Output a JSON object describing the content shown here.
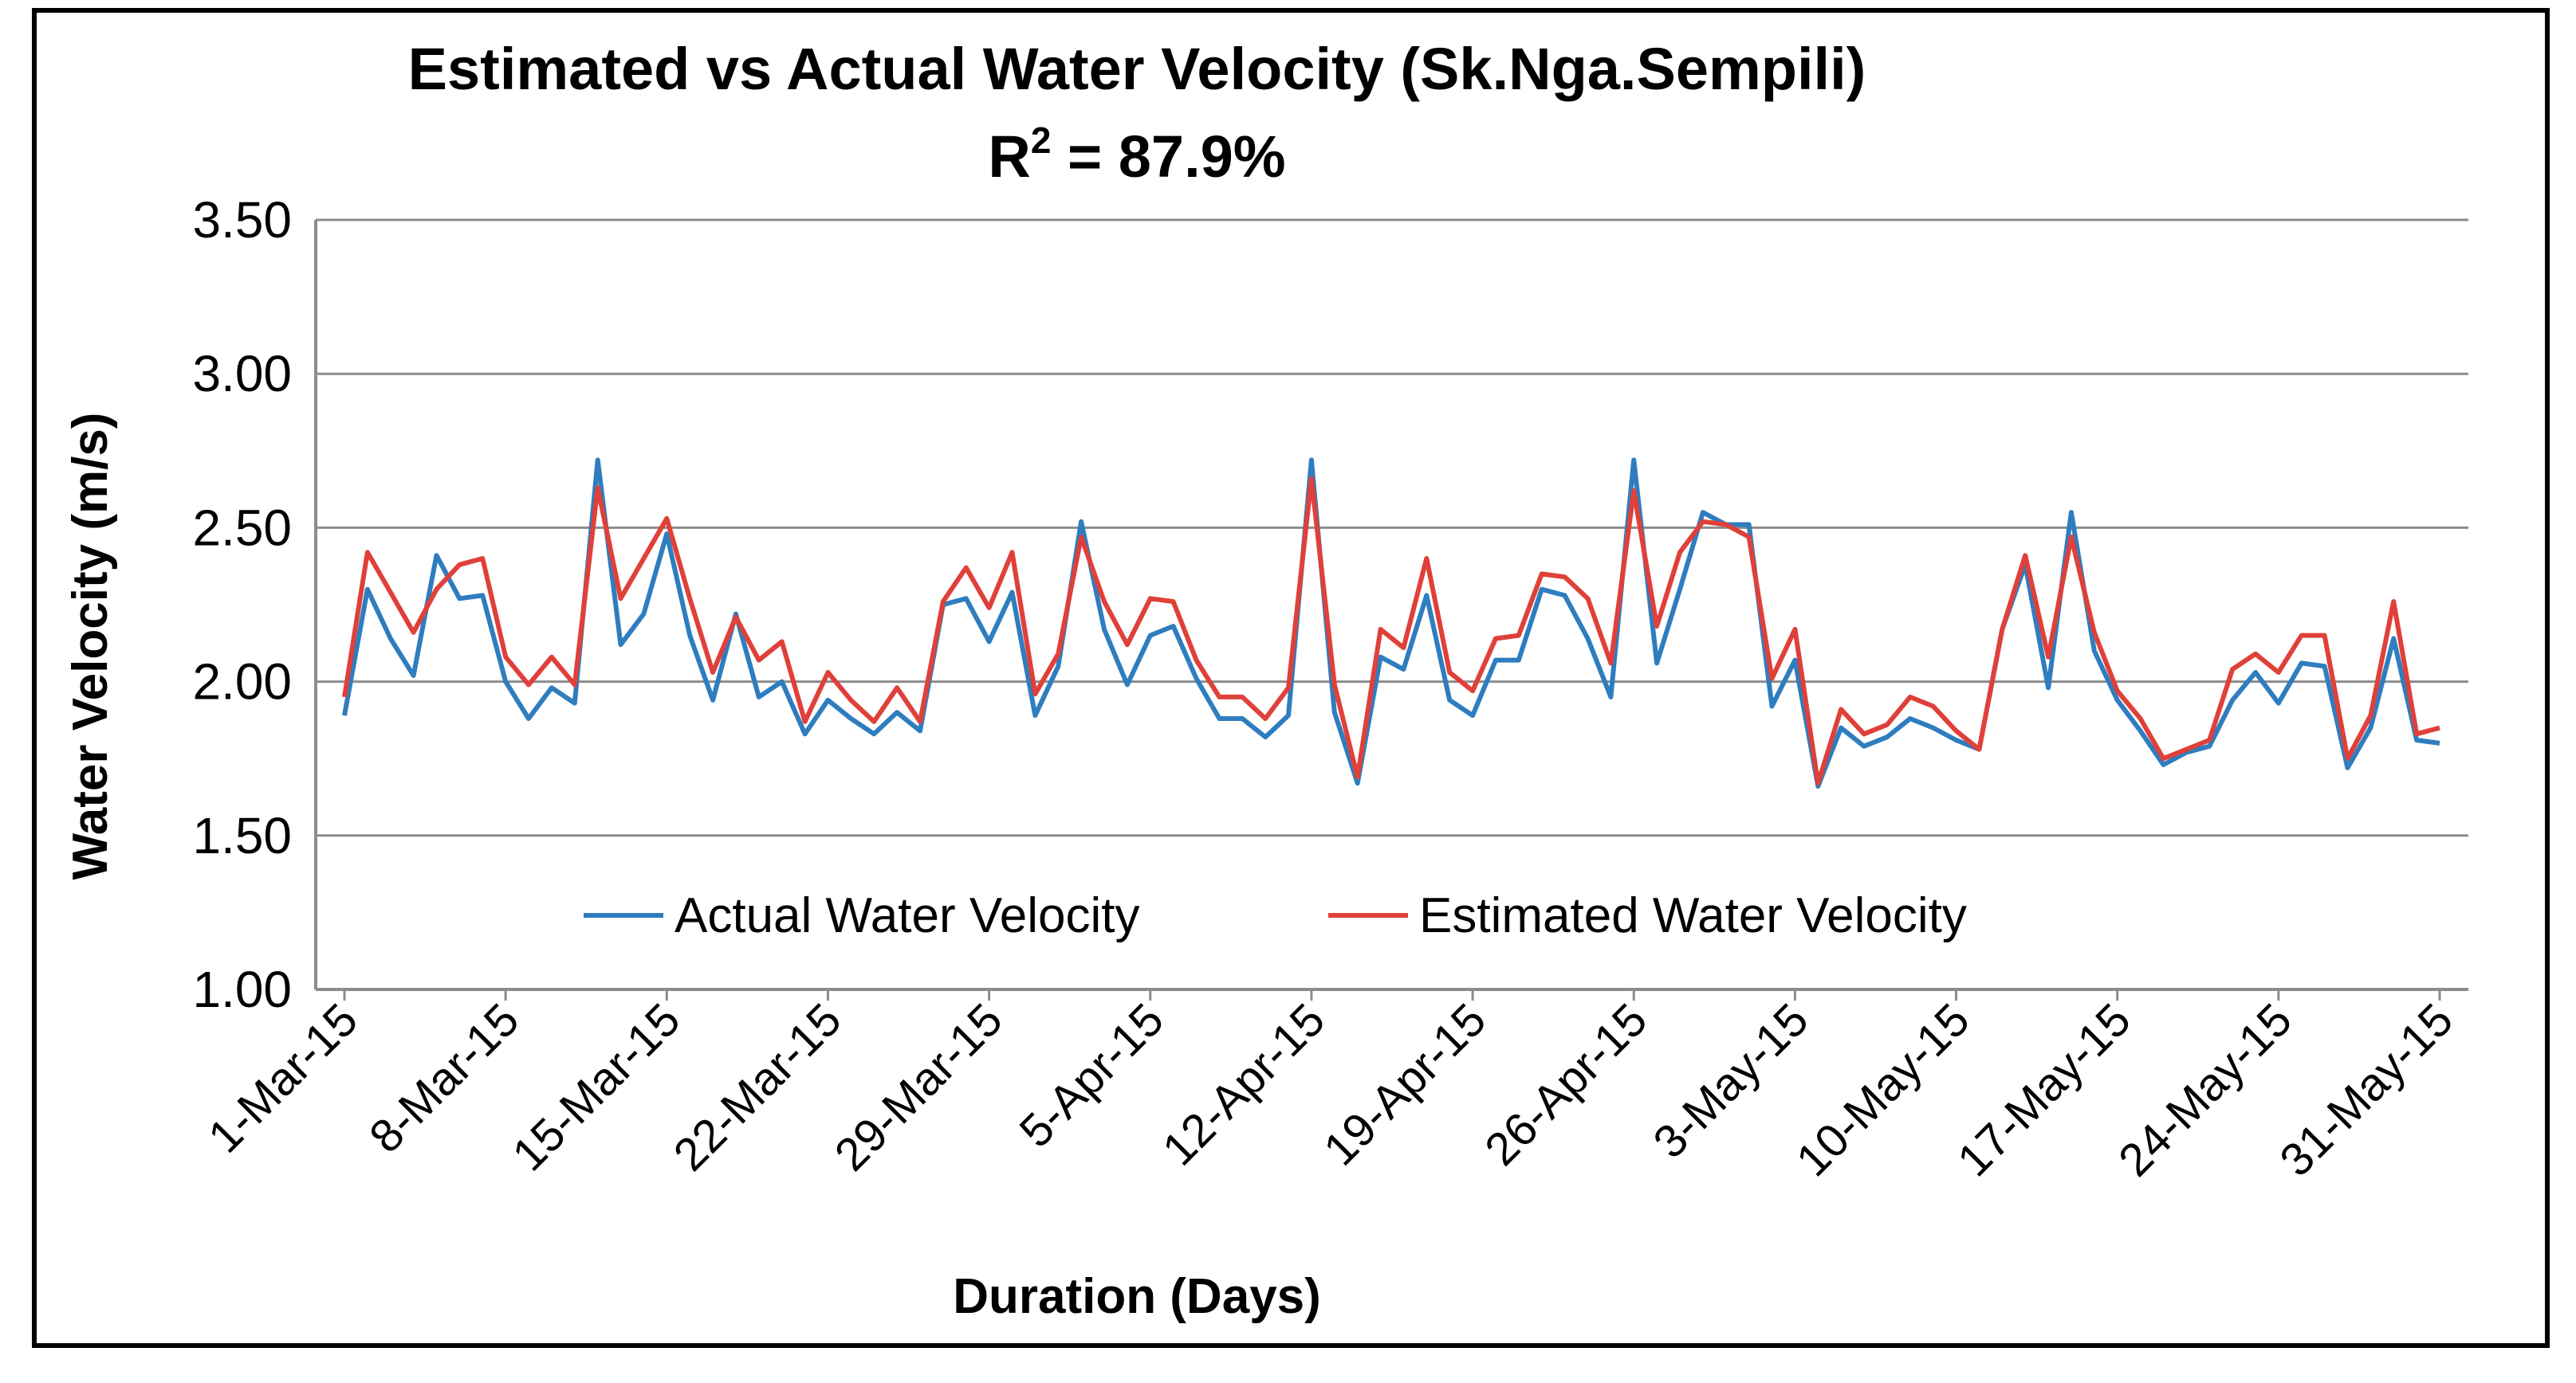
{
  "colors": {
    "actual": "#2e7dbf",
    "estimated": "#e0403a",
    "grid": "#8c8c8c",
    "background": "#ffffff"
  },
  "chart_data": {
    "type": "line",
    "title": "Estimated vs Actual Water Velocity  (Sk.Nga.Sempili)",
    "subtitle_prefix": "R",
    "subtitle_sup": "2",
    "subtitle_suffix": " = 87.9%",
    "xlabel": "Duration (Days)",
    "ylabel": "Water Velocity (m/s)",
    "ylim": [
      1.0,
      3.5
    ],
    "ytick_values": [
      1.0,
      1.5,
      2.0,
      2.5,
      3.0,
      3.5
    ],
    "ytick_labels": [
      "1.00",
      "1.50",
      "2.00",
      "2.50",
      "3.00",
      "3.50"
    ],
    "x_tick_labels": [
      "1-Mar-15",
      "8-Mar-15",
      "15-Mar-15",
      "22-Mar-15",
      "29-Mar-15",
      "5-Apr-15",
      "12-Apr-15",
      "19-Apr-15",
      "26-Apr-15",
      "3-May-15",
      "10-May-15",
      "17-May-15",
      "24-May-15",
      "31-May-15"
    ],
    "x_tick_indices": [
      0,
      7,
      14,
      21,
      28,
      35,
      42,
      49,
      56,
      63,
      70,
      77,
      84,
      91
    ],
    "num_days": 92,
    "legend": [
      "Actual Water Velocity",
      "Estimated Water Velocity"
    ],
    "series": [
      {
        "name": "Actual Water Velocity",
        "values": [
          1.89,
          2.3,
          2.14,
          2.02,
          2.41,
          2.27,
          2.28,
          2.0,
          1.88,
          1.98,
          1.93,
          2.72,
          2.12,
          2.22,
          2.48,
          2.15,
          1.94,
          2.22,
          1.95,
          2.0,
          1.83,
          1.94,
          1.88,
          1.83,
          1.9,
          1.84,
          2.25,
          2.27,
          2.13,
          2.29,
          1.89,
          2.05,
          2.52,
          2.17,
          1.99,
          2.15,
          2.18,
          2.01,
          1.88,
          1.88,
          1.82,
          1.89,
          2.72,
          1.9,
          1.67,
          2.08,
          2.04,
          2.28,
          1.94,
          1.89,
          2.07,
          2.07,
          2.3,
          2.28,
          2.14,
          1.95,
          2.72,
          2.06,
          2.3,
          2.55,
          2.51,
          2.51,
          1.92,
          2.07,
          1.66,
          1.85,
          1.79,
          1.82,
          1.88,
          1.85,
          1.81,
          1.78,
          2.17,
          2.38,
          1.98,
          2.55,
          2.1,
          1.94,
          1.84,
          1.73,
          1.77,
          1.79,
          1.94,
          2.03,
          1.93,
          2.06,
          2.05,
          1.72,
          1.85,
          2.14,
          1.81,
          1.8
        ]
      },
      {
        "name": "Estimated Water Velocity",
        "values": [
          1.95,
          2.42,
          2.29,
          2.16,
          2.3,
          2.38,
          2.4,
          2.08,
          1.99,
          2.08,
          1.99,
          2.63,
          2.27,
          2.4,
          2.53,
          2.27,
          2.03,
          2.21,
          2.07,
          2.13,
          1.87,
          2.03,
          1.94,
          1.87,
          1.98,
          1.87,
          2.26,
          2.37,
          2.24,
          2.42,
          1.96,
          2.09,
          2.47,
          2.26,
          2.12,
          2.27,
          2.26,
          2.07,
          1.95,
          1.95,
          1.88,
          1.98,
          2.66,
          1.99,
          1.69,
          2.17,
          2.11,
          2.4,
          2.03,
          1.97,
          2.14,
          2.15,
          2.35,
          2.34,
          2.27,
          2.06,
          2.62,
          2.18,
          2.42,
          2.52,
          2.51,
          2.47,
          2.01,
          2.17,
          1.67,
          1.91,
          1.83,
          1.86,
          1.95,
          1.92,
          1.84,
          1.78,
          2.17,
          2.41,
          2.08,
          2.47,
          2.16,
          1.97,
          1.88,
          1.75,
          1.78,
          1.81,
          2.04,
          2.09,
          2.03,
          2.15,
          2.15,
          1.75,
          1.89,
          2.26,
          1.83,
          1.85
        ]
      }
    ]
  }
}
